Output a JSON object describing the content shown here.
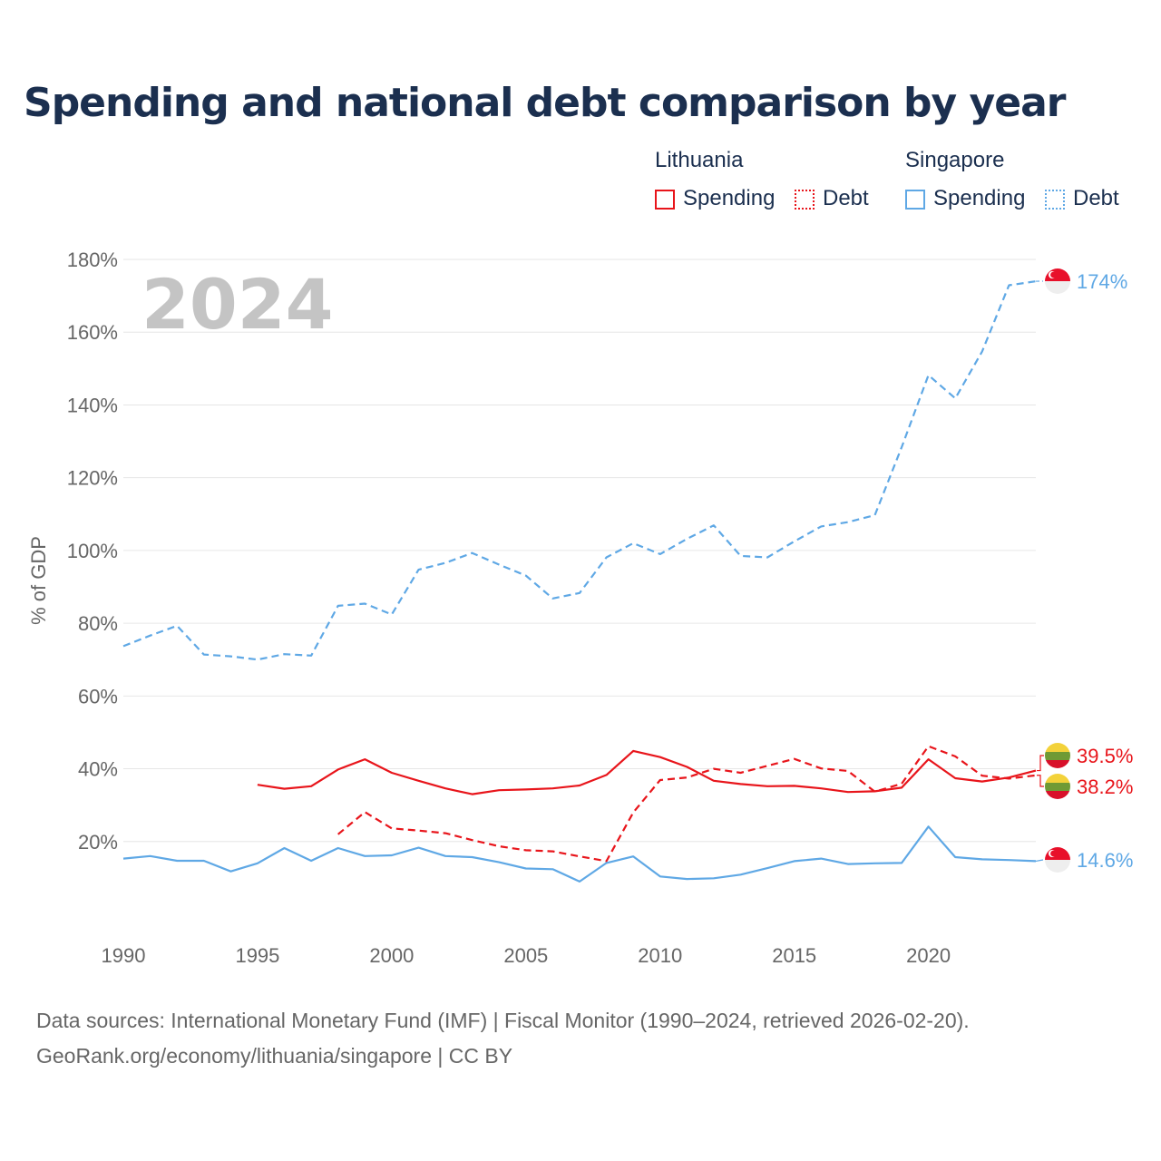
{
  "chart_data": {
    "type": "line",
    "title": "Spending and national debt comparison by year",
    "ylabel": "% of GDP",
    "xlabel": "",
    "xlim": [
      1990,
      2024
    ],
    "ylim": [
      0,
      180
    ],
    "yticks": [
      20,
      40,
      60,
      80,
      100,
      120,
      140,
      160,
      180
    ],
    "ytick_labels": [
      "20%",
      "40%",
      "60%",
      "80%",
      "100%",
      "120%",
      "140%",
      "160%",
      "180%"
    ],
    "xticks": [
      1990,
      1995,
      2000,
      2005,
      2010,
      2015,
      2020
    ],
    "xtick_labels": [
      "1990",
      "1995",
      "2000",
      "2005",
      "2010",
      "2015",
      "2020"
    ],
    "year_watermark": "2024",
    "legend": {
      "groups": [
        {
          "country": "Lithuania",
          "items": [
            "Spending",
            "Debt"
          ],
          "color": "#e8151b"
        },
        {
          "country": "Singapore",
          "items": [
            "Spending",
            "Debt"
          ],
          "color": "#5fa8e5"
        }
      ]
    },
    "series": [
      {
        "name": "Singapore Debt",
        "country": "Singapore",
        "metric": "Debt",
        "color": "#5fa8e5",
        "dash": true,
        "x": [
          1990,
          1991,
          1992,
          1993,
          1994,
          1995,
          1996,
          1997,
          1998,
          1999,
          2000,
          2001,
          2002,
          2003,
          2004,
          2005,
          2006,
          2007,
          2008,
          2009,
          2010,
          2011,
          2012,
          2013,
          2014,
          2015,
          2016,
          2017,
          2018,
          2019,
          2020,
          2021,
          2022,
          2023,
          2024
        ],
        "values": [
          73.7,
          76.6,
          79.3,
          71.4,
          70.9,
          70.0,
          71.5,
          71.1,
          84.8,
          85.4,
          82.4,
          94.7,
          96.6,
          99.3,
          96.1,
          93.1,
          86.8,
          88.3,
          98.1,
          102.0,
          99.0,
          103.2,
          106.9,
          98.5,
          98.1,
          102.5,
          106.6,
          107.8,
          109.7,
          128.4,
          148.2,
          141.8,
          154.7,
          172.9,
          174.0
        ],
        "end_label": "174%"
      },
      {
        "name": "Lithuania Spending",
        "country": "Lithuania",
        "metric": "Spending",
        "color": "#e8151b",
        "dash": false,
        "x": [
          1995,
          1996,
          1997,
          1998,
          1999,
          2000,
          2001,
          2002,
          2003,
          2004,
          2005,
          2006,
          2007,
          2008,
          2009,
          2010,
          2011,
          2012,
          2013,
          2014,
          2015,
          2016,
          2017,
          2018,
          2019,
          2020,
          2021,
          2022,
          2023,
          2024
        ],
        "values": [
          35.6,
          34.5,
          35.2,
          39.8,
          42.6,
          38.9,
          36.7,
          34.6,
          33.0,
          34.1,
          34.3,
          34.6,
          35.4,
          38.3,
          44.9,
          43.2,
          40.5,
          36.7,
          35.8,
          35.2,
          35.3,
          34.6,
          33.6,
          33.8,
          34.8,
          42.6,
          37.4,
          36.5,
          37.6,
          39.5
        ],
        "end_label": "39.5%"
      },
      {
        "name": "Lithuania Debt",
        "country": "Lithuania",
        "metric": "Debt",
        "color": "#e8151b",
        "dash": true,
        "x": [
          1998,
          1999,
          2000,
          2001,
          2002,
          2003,
          2004,
          2005,
          2006,
          2007,
          2008,
          2009,
          2010,
          2011,
          2012,
          2013,
          2014,
          2015,
          2016,
          2017,
          2018,
          2019,
          2020,
          2021,
          2022,
          2023,
          2024
        ],
        "values": [
          22.0,
          28.1,
          23.6,
          23.0,
          22.3,
          20.4,
          18.7,
          17.6,
          17.3,
          15.9,
          14.6,
          28.0,
          36.9,
          37.6,
          40.0,
          38.9,
          40.8,
          42.7,
          40.1,
          39.4,
          33.7,
          35.9,
          46.2,
          43.4,
          38.1,
          37.3,
          38.2
        ],
        "end_label": "38.2%"
      },
      {
        "name": "Singapore Spending",
        "country": "Singapore",
        "metric": "Spending",
        "color": "#5fa8e5",
        "dash": false,
        "x": [
          1990,
          1991,
          1992,
          1993,
          1994,
          1995,
          1996,
          1997,
          1998,
          1999,
          2000,
          2001,
          2002,
          2003,
          2004,
          2005,
          2006,
          2007,
          2008,
          2009,
          2010,
          2011,
          2012,
          2013,
          2014,
          2015,
          2016,
          2017,
          2018,
          2019,
          2020,
          2021,
          2022,
          2023,
          2024
        ],
        "values": [
          15.3,
          16.0,
          14.7,
          14.7,
          11.8,
          14.0,
          18.2,
          14.7,
          18.2,
          16.0,
          16.2,
          18.3,
          16.0,
          15.7,
          14.3,
          12.6,
          12.4,
          9.0,
          14.1,
          15.9,
          10.4,
          9.7,
          9.9,
          10.9,
          12.7,
          14.6,
          15.3,
          13.8,
          14.0,
          14.1,
          24.1,
          15.7,
          15.1,
          14.9,
          14.6
        ],
        "end_label": "14.6%"
      }
    ]
  },
  "sources": {
    "line1": "Data sources: International Monetary Fund (IMF) | Fiscal Monitor (1990–2024, retrieved 2026-02-20).",
    "line2": "GeoRank.org/economy/lithuania/singapore | CC BY"
  }
}
